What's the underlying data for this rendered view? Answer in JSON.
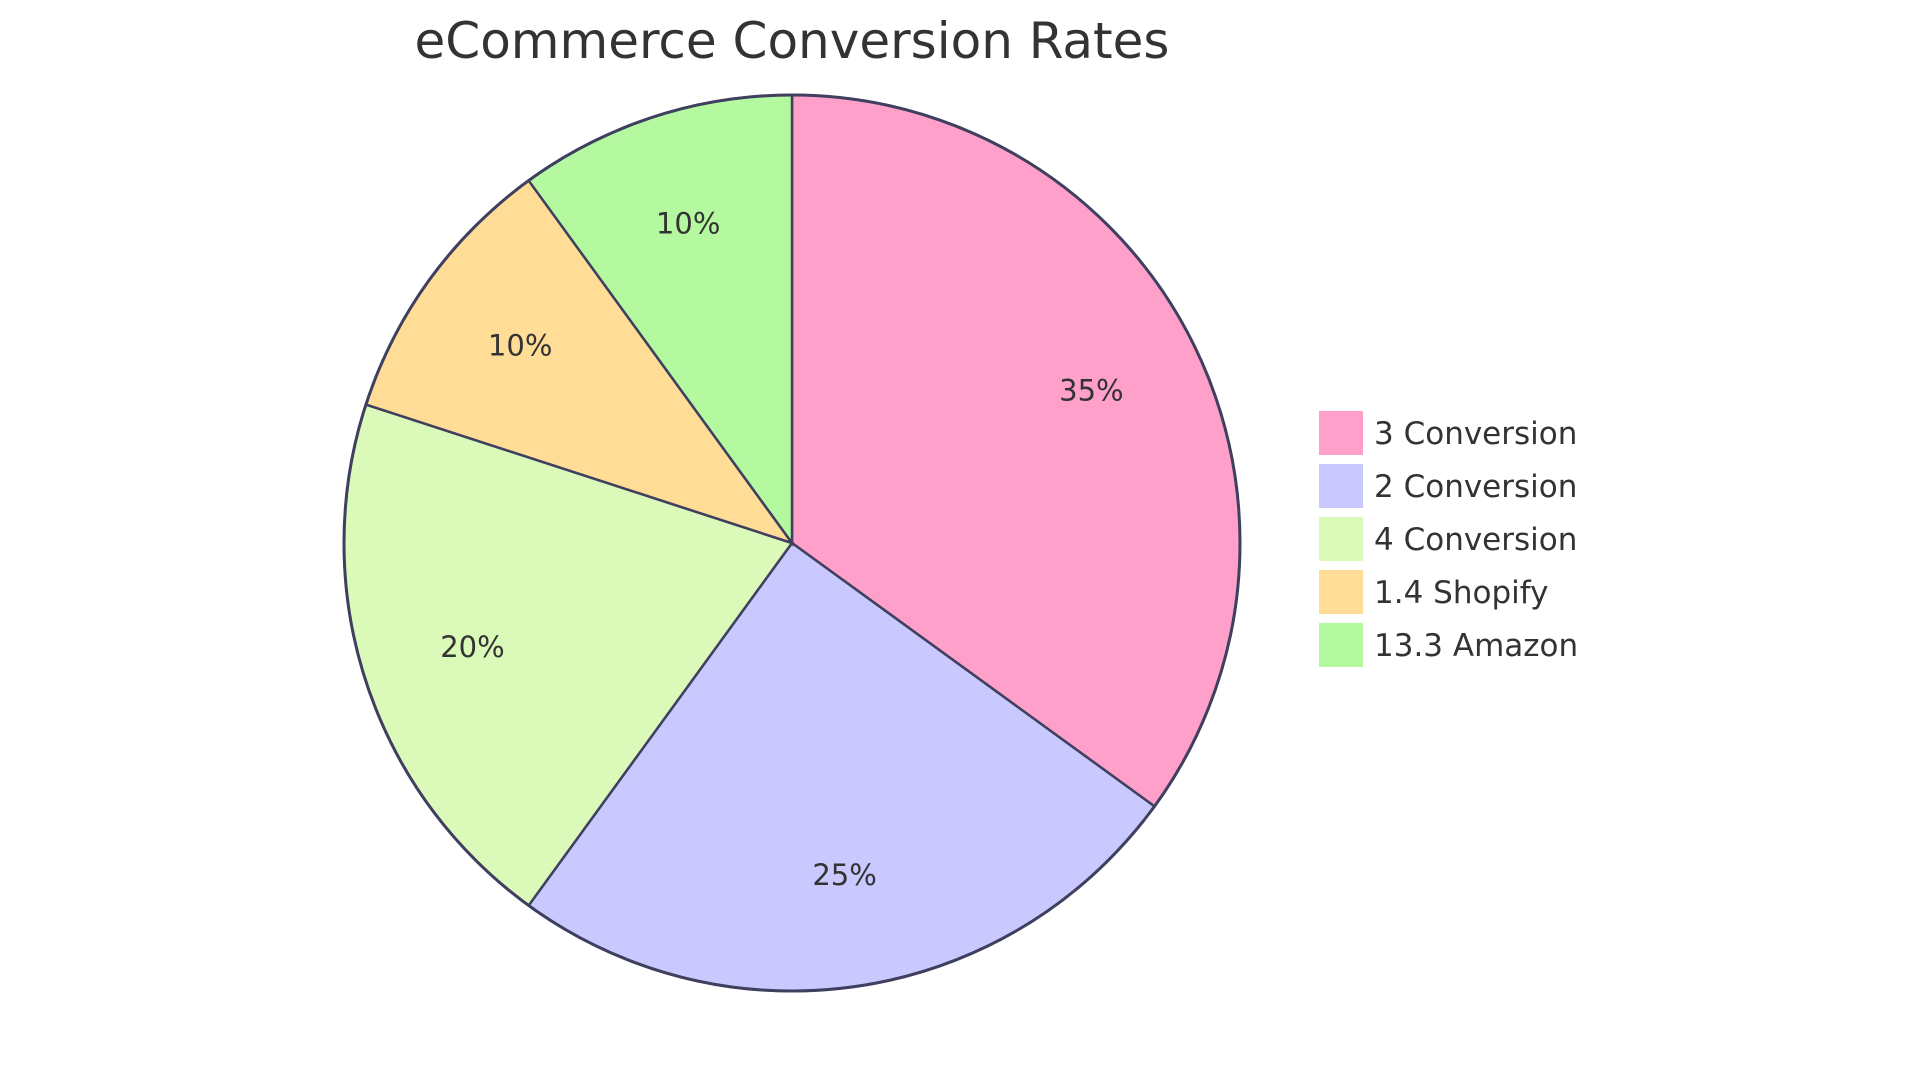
{
  "chart_data": {
    "type": "pie",
    "title": "eCommerce Conversion Rates",
    "slices": [
      {
        "label": "3 Conversion",
        "value": 35,
        "display": "35%",
        "color": "#ffa0cb"
      },
      {
        "label": "2 Conversion",
        "value": 25,
        "display": "25%",
        "color": "#c9c9ff"
      },
      {
        "label": "4 Conversion",
        "value": 20,
        "display": "20%",
        "color": "#dbfab9"
      },
      {
        "label": "1.4 Shopify",
        "value": 10,
        "display": "10%",
        "color": "#ffdd96"
      },
      {
        "label": "13.3 Amazon",
        "value": 10,
        "display": "10%",
        "color": "#b4f9a0"
      }
    ],
    "legend_position": "right",
    "start_angle": "12 o'clock, clockwise"
  }
}
